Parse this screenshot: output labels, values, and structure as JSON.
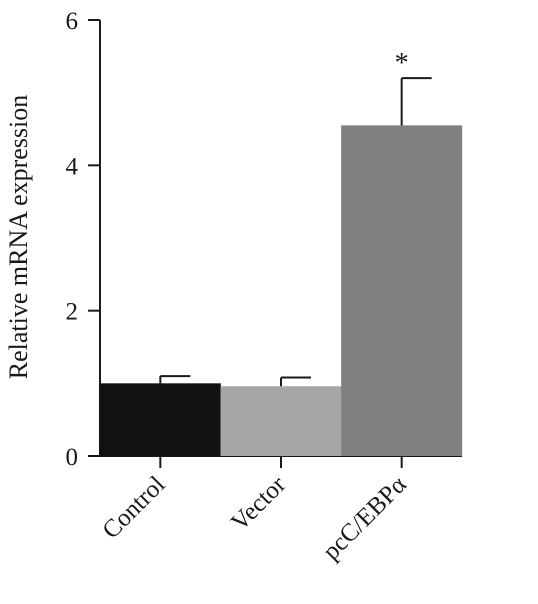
{
  "chart_data": {
    "type": "bar",
    "title": "",
    "xlabel": "",
    "ylabel": "Relative mRNA expression",
    "ylim": [
      0,
      6
    ],
    "yticks": [
      0,
      2,
      4,
      6
    ],
    "categories": [
      "Control",
      "Vector",
      "pcC/EBPα"
    ],
    "values": [
      1.0,
      0.96,
      4.55
    ],
    "error_upper": [
      0.1,
      0.12,
      0.65
    ],
    "bar_colors": [
      "#111111",
      "#a6a6a8",
      "#7f7f7f"
    ],
    "annotations": [
      {
        "category": "pcC/EBPα",
        "text": "*"
      }
    ],
    "grid": false,
    "legend": "none"
  }
}
